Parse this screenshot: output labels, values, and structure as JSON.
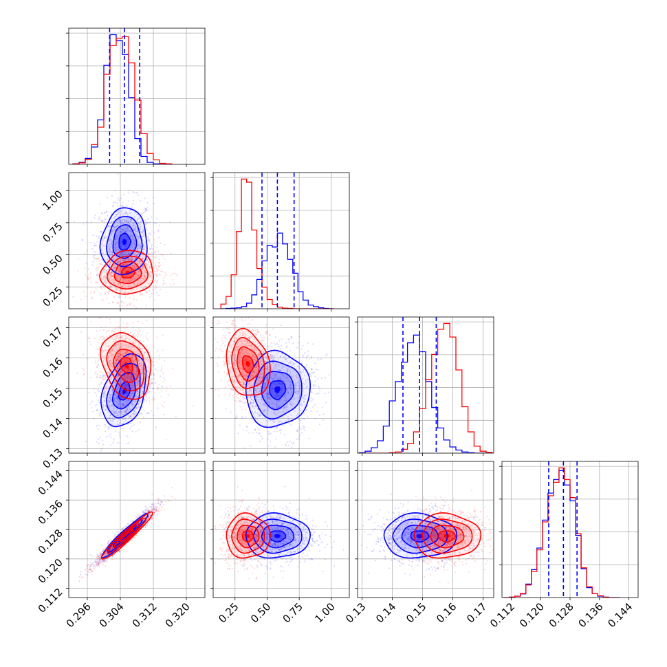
{
  "colors": {
    "blue": "#0000ff",
    "red": "#ff0000",
    "grid": "#b0b0b0",
    "axis": "#000000"
  },
  "chart_data": {
    "type": "corner",
    "series": [
      {
        "color": "blue",
        "hist_quantile_lines": true
      },
      {
        "color": "red",
        "hist_quantile_lines": false
      }
    ],
    "params": [
      {
        "range": [
          0.2915,
          0.3245
        ],
        "ticks": [
          0.296,
          0.304,
          0.312,
          0.32
        ],
        "tick_labels": [
          "0.296",
          "0.304",
          "0.312",
          "0.320"
        ]
      },
      {
        "range": [
          0.08,
          1.14
        ],
        "ticks": [
          0.25,
          0.5,
          0.75,
          1.0
        ],
        "tick_labels": [
          "0.25",
          "0.50",
          "0.75",
          "1.00"
        ]
      },
      {
        "range": [
          0.1285,
          0.1735
        ],
        "ticks": [
          0.13,
          0.14,
          0.15,
          0.16,
          0.17
        ],
        "tick_labels": [
          "0.13",
          "0.14",
          "0.15",
          "0.16",
          "0.17"
        ]
      },
      {
        "range": [
          0.1095,
          0.1465
        ],
        "ticks": [
          0.112,
          0.12,
          0.128,
          0.136,
          0.144
        ],
        "tick_labels": [
          "0.112",
          "0.120",
          "0.128",
          "0.136",
          "0.144"
        ]
      }
    ],
    "diagonal": [
      {
        "quantiles_blue": [
          0.3014,
          0.305,
          0.3087
        ],
        "blue_hist": {
          "bins": [
            0.2925,
            0.294,
            0.2955,
            0.297,
            0.2985,
            0.3,
            0.3015,
            0.303,
            0.3045,
            0.306,
            0.3075,
            0.309,
            0.3105,
            0.312,
            0.3135,
            0.315
          ],
          "counts": [
            1,
            4,
            12,
            35,
            90,
            200,
            262,
            250,
            222,
            135,
            52,
            16,
            4,
            1,
            0,
            0
          ]
        },
        "red_hist": {
          "bins": [
            0.2925,
            0.294,
            0.2955,
            0.297,
            0.2985,
            0.3,
            0.3015,
            0.303,
            0.3045,
            0.306,
            0.3075,
            0.309,
            0.3105,
            0.312,
            0.3135,
            0.315
          ],
          "counts": [
            1,
            3,
            10,
            40,
            75,
            182,
            240,
            255,
            258,
            205,
            130,
            62,
            22,
            9,
            2,
            1
          ]
        }
      },
      {
        "quantiles_blue": [
          0.46,
          0.58,
          0.71
        ],
        "blue_hist": {
          "bins": [
            0.14,
            0.18,
            0.22,
            0.26,
            0.3,
            0.34,
            0.38,
            0.42,
            0.46,
            0.5,
            0.54,
            0.58,
            0.62,
            0.66,
            0.7,
            0.74,
            0.78,
            0.82,
            0.86,
            0.9,
            0.94,
            0.98
          ],
          "counts": [
            0,
            1,
            2,
            3,
            7,
            18,
            45,
            95,
            155,
            205,
            200,
            245,
            210,
            160,
            115,
            55,
            28,
            12,
            7,
            3,
            1,
            0
          ]
        },
        "red_hist": {
          "bins": [
            0.14,
            0.18,
            0.22,
            0.26,
            0.3,
            0.34,
            0.38,
            0.42,
            0.46,
            0.5,
            0.54,
            0.58,
            0.62,
            0.66,
            0.7,
            0.74,
            0.78,
            0.82,
            0.86,
            0.9,
            0.94,
            0.98
          ],
          "counts": [
            15,
            40,
            110,
            250,
            420,
            410,
            255,
            130,
            70,
            30,
            14,
            5,
            2,
            1,
            0,
            0,
            0,
            0,
            0,
            0,
            0,
            0
          ]
        }
      },
      {
        "quantiles_blue": [
          0.1435,
          0.149,
          0.1545
        ],
        "blue_hist": {
          "bins": [
            0.129,
            0.131,
            0.133,
            0.135,
            0.137,
            0.139,
            0.141,
            0.143,
            0.145,
            0.147,
            0.149,
            0.151,
            0.153,
            0.155,
            0.157,
            0.159,
            0.161,
            0.163,
            0.165,
            0.167,
            0.169,
            0.171
          ],
          "counts": [
            1,
            5,
            14,
            32,
            70,
            135,
            185,
            235,
            285,
            305,
            262,
            185,
            118,
            65,
            34,
            16,
            8,
            3,
            1,
            0,
            0,
            0
          ]
        },
        "red_hist": {
          "bins": [
            0.129,
            0.131,
            0.133,
            0.135,
            0.137,
            0.139,
            0.141,
            0.143,
            0.145,
            0.147,
            0.149,
            0.151,
            0.153,
            0.155,
            0.157,
            0.159,
            0.161,
            0.163,
            0.165,
            0.167,
            0.169,
            0.171
          ],
          "counts": [
            0,
            0,
            0,
            0,
            0,
            1,
            3,
            10,
            25,
            55,
            115,
            190,
            255,
            320,
            335,
            300,
            215,
            120,
            55,
            18,
            5,
            2
          ]
        }
      },
      {
        "quantiles_blue": [
          0.1222,
          0.1262,
          0.1299
        ],
        "blue_hist": {
          "bins": [
            0.11,
            0.1115,
            0.113,
            0.1145,
            0.116,
            0.1175,
            0.119,
            0.1205,
            0.122,
            0.1235,
            0.125,
            0.1265,
            0.128,
            0.1295,
            0.131,
            0.1325,
            0.134,
            0.1355,
            0.137,
            0.1385,
            0.14
          ],
          "counts": [
            0,
            1,
            3,
            8,
            30,
            62,
            110,
            172,
            232,
            262,
            282,
            250,
            215,
            138,
            64,
            22,
            9,
            3,
            1,
            0,
            0
          ]
        },
        "red_hist": {
          "bins": [
            0.11,
            0.1115,
            0.113,
            0.1145,
            0.116,
            0.1175,
            0.119,
            0.1205,
            0.122,
            0.1235,
            0.125,
            0.1265,
            0.128,
            0.1295,
            0.131,
            0.1325,
            0.134,
            0.1355,
            0.137,
            0.1385,
            0.14
          ],
          "counts": [
            0,
            1,
            3,
            9,
            28,
            58,
            106,
            168,
            226,
            256,
            288,
            262,
            222,
            142,
            66,
            24,
            9,
            4,
            1,
            0,
            0
          ]
        }
      }
    ],
    "off_diagonal": [
      {
        "i": 1,
        "j": 0,
        "blue": {
          "mean": [
            0.305,
            0.6
          ],
          "sd": [
            0.0028,
            0.13
          ],
          "rho": 0.05
        },
        "red": {
          "mean": [
            0.3058,
            0.36
          ],
          "sd": [
            0.0032,
            0.085
          ],
          "rho": 0.08
        }
      },
      {
        "i": 2,
        "j": 0,
        "blue": {
          "mean": [
            0.305,
            0.149
          ],
          "sd": [
            0.0027,
            0.006
          ],
          "rho": 0.35
        },
        "red": {
          "mean": [
            0.3055,
            0.1575
          ],
          "sd": [
            0.003,
            0.0055
          ],
          "rho": -0.25
        }
      },
      {
        "i": 2,
        "j": 1,
        "blue": {
          "mean": [
            0.58,
            0.1495
          ],
          "sd": [
            0.125,
            0.0062
          ],
          "rho": 0.05
        },
        "red": {
          "mean": [
            0.35,
            0.158
          ],
          "sd": [
            0.085,
            0.0055
          ],
          "rho": -0.2
        }
      },
      {
        "i": 3,
        "j": 0,
        "blue": {
          "mean": [
            0.305,
            0.1262
          ],
          "sd": [
            0.0028,
            0.003
          ],
          "rho": 0.96
        },
        "red": {
          "mean": [
            0.3055,
            0.1262
          ],
          "sd": [
            0.0031,
            0.0032
          ],
          "rho": 0.96
        }
      },
      {
        "i": 3,
        "j": 1,
        "blue": {
          "mean": [
            0.58,
            0.1262
          ],
          "sd": [
            0.125,
            0.003
          ],
          "rho": 0.0
        },
        "red": {
          "mean": [
            0.35,
            0.1262
          ],
          "sd": [
            0.085,
            0.003
          ],
          "rho": 0.0
        }
      },
      {
        "i": 3,
        "j": 2,
        "blue": {
          "mean": [
            0.149,
            0.1262
          ],
          "sd": [
            0.006,
            0.003
          ],
          "rho": 0.0
        },
        "red": {
          "mean": [
            0.158,
            0.1262
          ],
          "sd": [
            0.0055,
            0.003
          ],
          "rho": 0.0
        }
      }
    ],
    "contour_levels_sigma": [
      0.5,
      1.0,
      1.5,
      2.0
    ],
    "grid": true,
    "diagonal_y_axis_labels": false
  }
}
